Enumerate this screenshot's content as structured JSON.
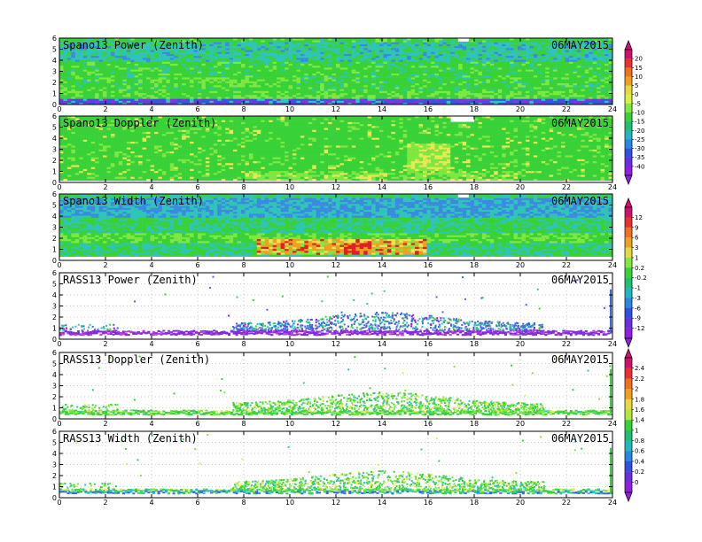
{
  "colors": {
    "green": "#38d238",
    "light_green": "#7ee840",
    "cyan": "#2fc4b8",
    "blue": "#3a6ae0",
    "purple": "#8a2be2",
    "yellow": "#e8e850",
    "orange": "#f0a020",
    "red": "#e02020"
  },
  "chart_data": [
    {
      "type": "heatmap",
      "id": "spano-power",
      "title": "Spano13 Power (Zenith)",
      "date": "06MAY2015",
      "x_ticks": [
        "0",
        "2",
        "4",
        "6",
        "8",
        "10",
        "12",
        "14",
        "16",
        "18",
        "20",
        "22",
        "24"
      ],
      "y_ticks": [
        "0",
        "1",
        "2",
        "3",
        "4",
        "5",
        "6"
      ],
      "xlim": [
        0,
        24
      ],
      "ylim": [
        0,
        6
      ],
      "colorbar": "power_doppler"
    },
    {
      "type": "heatmap",
      "id": "spano-doppler",
      "title": "Spano13 Doppler (Zenith)",
      "date": "06MAY2015",
      "x_ticks": [
        "0",
        "2",
        "4",
        "6",
        "8",
        "10",
        "12",
        "14",
        "16",
        "18",
        "20",
        "22",
        "24"
      ],
      "y_ticks": [
        "0",
        "1",
        "2",
        "3",
        "4",
        "5",
        "6"
      ],
      "xlim": [
        0,
        24
      ],
      "ylim": [
        0,
        6
      ],
      "colorbar": "power_doppler"
    },
    {
      "type": "heatmap",
      "id": "spano-width",
      "title": "Spano13 Width (Zenith)",
      "date": "06MAY2015",
      "x_ticks": [
        "0",
        "2",
        "4",
        "6",
        "8",
        "10",
        "12",
        "14",
        "16",
        "18",
        "20",
        "22",
        "24"
      ],
      "y_ticks": [
        "0",
        "1",
        "2",
        "3",
        "4",
        "5",
        "6"
      ],
      "xlim": [
        0,
        24
      ],
      "ylim": [
        0,
        6
      ],
      "colorbar": "width_power"
    },
    {
      "type": "scatter",
      "id": "rass-power",
      "title": "RASS13 Power (Zenith)",
      "date": "06MAY2015",
      "x_ticks": [
        "0",
        "2",
        "4",
        "6",
        "8",
        "10",
        "12",
        "14",
        "16",
        "18",
        "20",
        "22",
        "24"
      ],
      "y_ticks": [
        "0",
        "1",
        "2",
        "3",
        "4",
        "5",
        "6"
      ],
      "xlim": [
        0,
        24
      ],
      "ylim": [
        0,
        6
      ],
      "colorbar": "width_power"
    },
    {
      "type": "scatter",
      "id": "rass-doppler",
      "title": "RASS13 Doppler (Zenith)",
      "date": "06MAY2015",
      "x_ticks": [
        "0",
        "2",
        "4",
        "6",
        "8",
        "10",
        "12",
        "14",
        "16",
        "18",
        "20",
        "22",
        "24"
      ],
      "y_ticks": [
        "0",
        "1",
        "2",
        "3",
        "4",
        "5",
        "6"
      ],
      "xlim": [
        0,
        24
      ],
      "ylim": [
        0,
        6
      ],
      "colorbar": "rass"
    },
    {
      "type": "scatter",
      "id": "rass-width",
      "title": "RASS13 Width (Zenith)",
      "date": "06MAY2015",
      "x_ticks": [
        "0",
        "2",
        "4",
        "6",
        "8",
        "10",
        "12",
        "14",
        "16",
        "18",
        "20",
        "22",
        "24"
      ],
      "y_ticks": [
        "0",
        "1",
        "2",
        "3",
        "4",
        "5",
        "6"
      ],
      "xlim": [
        0,
        24
      ],
      "ylim": [
        0,
        6
      ],
      "colorbar": "rass"
    }
  ],
  "colorbars": [
    {
      "id": "power_doppler",
      "labels": [
        "20",
        "15",
        "10",
        "5",
        "0",
        "-5",
        "-10",
        "-15",
        "-20",
        "-25",
        "-30",
        "-35",
        "-40"
      ],
      "colors": [
        "#d0106a",
        "#e83030",
        "#f07020",
        "#f0a020",
        "#e8d840",
        "#d8f040",
        "#80e840",
        "#38d238",
        "#20c070",
        "#20b8c0",
        "#2888e0",
        "#3050e0",
        "#6a30e0",
        "#9020e0"
      ]
    },
    {
      "id": "width_power",
      "labels": [
        "12",
        "9",
        "6",
        "3",
        "1",
        "0.2",
        "-0.2",
        "-1",
        "-3",
        "-6",
        "-9",
        "-12"
      ],
      "colors": [
        "#d0106a",
        "#e83030",
        "#f07020",
        "#f0a020",
        "#e8d840",
        "#80e840",
        "#38d238",
        "#20c070",
        "#20b8c0",
        "#2888e0",
        "#3050e0",
        "#6a30e0",
        "#9020e0"
      ]
    },
    {
      "id": "rass",
      "labels": [
        "2.4",
        "2.2",
        "2",
        "1.8",
        "1.6",
        "1.4",
        "1",
        "0.8",
        "0.6",
        "0.4",
        "0.2",
        "0"
      ],
      "colors": [
        "#d0106a",
        "#e83030",
        "#f07020",
        "#f0a020",
        "#e8d840",
        "#b0e840",
        "#38d238",
        "#20c070",
        "#20b8c0",
        "#2888e0",
        "#3050e0",
        "#6a30e0",
        "#9020e0"
      ]
    }
  ]
}
